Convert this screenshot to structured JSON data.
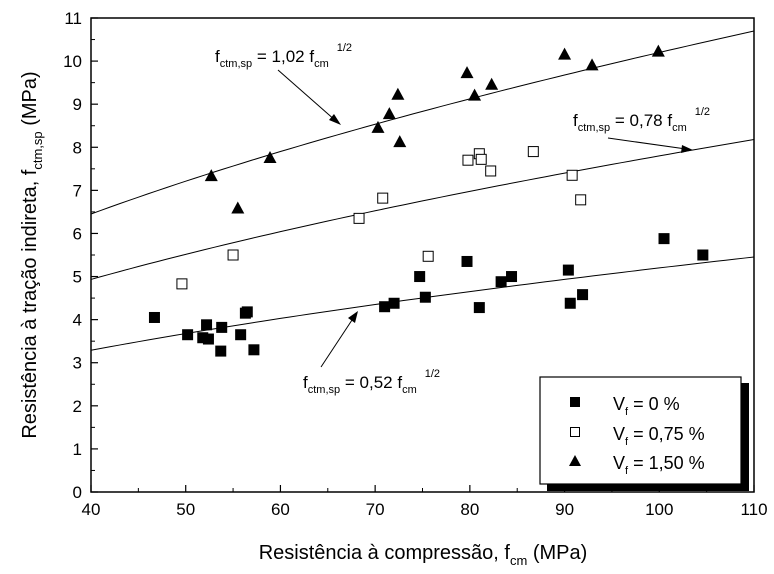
{
  "chart_data": {
    "type": "scatter",
    "xlabel": {
      "main": "Resistência à compressão, f",
      "sub": "cm",
      "tail": " (MPa)"
    },
    "ylabel": {
      "main": "Resistência à tração indireta, f",
      "sub": "ctm,sp",
      "tail": " (MPa)"
    },
    "xlim": [
      40,
      110
    ],
    "ylim": [
      0,
      11
    ],
    "xticks": [
      40,
      50,
      60,
      70,
      80,
      90,
      100,
      110
    ],
    "yticks": [
      0,
      1,
      2,
      3,
      4,
      5,
      6,
      7,
      8,
      9,
      10,
      11
    ],
    "grid": false,
    "legend_position": "bottom-right",
    "series": [
      {
        "name": {
          "main": "V",
          "sub": "f",
          "tail": " = 0 %"
        },
        "marker": "filled-square",
        "points": [
          [
            46.7,
            4.05
          ],
          [
            50.2,
            3.65
          ],
          [
            51.8,
            3.58
          ],
          [
            52.2,
            3.88
          ],
          [
            52.4,
            3.55
          ],
          [
            53.7,
            3.27
          ],
          [
            53.8,
            3.82
          ],
          [
            55.8,
            3.65
          ],
          [
            56.3,
            4.15
          ],
          [
            56.5,
            4.18
          ],
          [
            57.2,
            3.3
          ],
          [
            71.0,
            4.3
          ],
          [
            72.0,
            4.38
          ],
          [
            74.7,
            5.0
          ],
          [
            75.3,
            4.52
          ],
          [
            79.7,
            5.35
          ],
          [
            81.0,
            4.28
          ],
          [
            83.3,
            4.88
          ],
          [
            84.4,
            5.0
          ],
          [
            90.4,
            5.15
          ],
          [
            90.6,
            4.38
          ],
          [
            91.9,
            4.58
          ],
          [
            100.5,
            5.88
          ],
          [
            104.6,
            5.5
          ]
        ]
      },
      {
        "name": {
          "main": "V",
          "sub": "f",
          "tail": " = 0,75 %"
        },
        "marker": "open-square",
        "points": [
          [
            49.6,
            4.83
          ],
          [
            55.0,
            5.5
          ],
          [
            68.3,
            6.35
          ],
          [
            70.8,
            6.82
          ],
          [
            75.6,
            5.47
          ],
          [
            79.8,
            7.7
          ],
          [
            81.0,
            7.85
          ],
          [
            81.2,
            7.72
          ],
          [
            82.2,
            7.45
          ],
          [
            86.7,
            7.9
          ],
          [
            90.8,
            7.35
          ],
          [
            91.7,
            6.78
          ]
        ]
      },
      {
        "name": {
          "main": "V",
          "sub": "f",
          "tail": " = 1,50 %"
        },
        "marker": "filled-triangle",
        "points": [
          [
            52.7,
            7.33
          ],
          [
            55.5,
            6.58
          ],
          [
            58.9,
            7.75
          ],
          [
            70.3,
            8.45
          ],
          [
            71.5,
            8.77
          ],
          [
            72.4,
            9.22
          ],
          [
            72.6,
            8.12
          ],
          [
            79.7,
            9.72
          ],
          [
            80.5,
            9.2
          ],
          [
            82.3,
            9.45
          ],
          [
            90.0,
            10.15
          ],
          [
            92.9,
            9.9
          ],
          [
            99.9,
            10.22
          ]
        ]
      }
    ],
    "fits": [
      {
        "coef": 1.02,
        "label": {
          "a": "f",
          "asub": "ctm,sp",
          "b": " = 1,02 f",
          "bsub": "cm",
          "sup": "1/2"
        }
      },
      {
        "coef": 0.78,
        "label": {
          "a": "f",
          "asub": "ctm,sp",
          "b": " = 0,78 f",
          "bsub": "cm",
          "sup": "1/2"
        }
      },
      {
        "coef": 0.52,
        "label": {
          "a": "f",
          "asub": "ctm,sp",
          "b": " = 0,52 f",
          "bsub": "cm",
          "sup": "1/2"
        }
      }
    ]
  }
}
